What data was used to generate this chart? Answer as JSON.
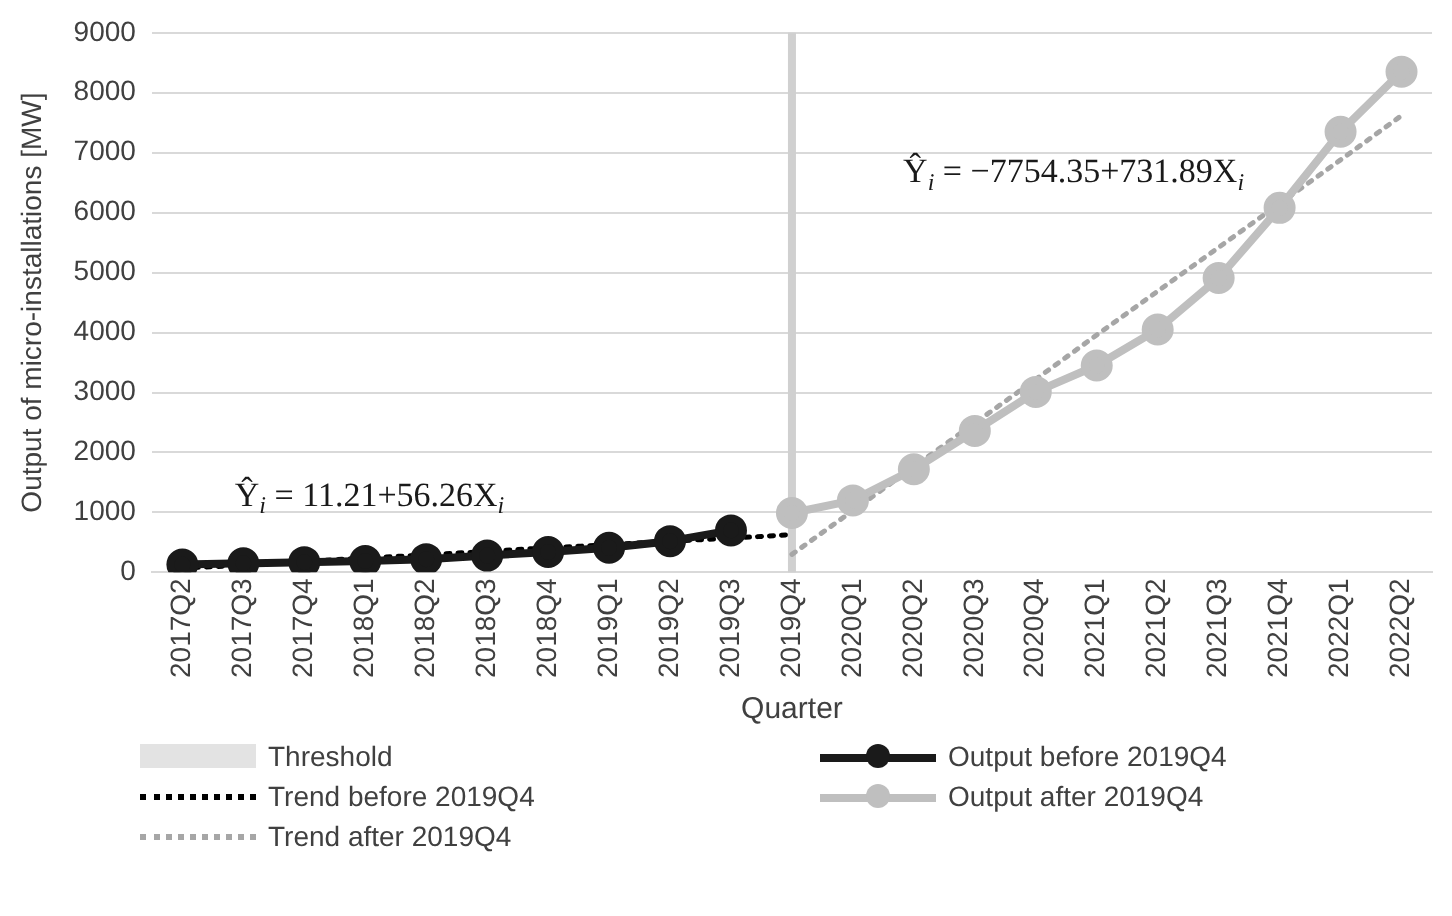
{
  "chart_data": {
    "type": "line",
    "xlabel": "Quarter",
    "ylabel": "Output of micro-installations [MW]",
    "categories": [
      "2017Q2",
      "2017Q3",
      "2017Q4",
      "2018Q1",
      "2018Q2",
      "2018Q3",
      "2018Q4",
      "2019Q1",
      "2019Q2",
      "2019Q3",
      "2019Q4",
      "2020Q1",
      "2020Q2",
      "2020Q3",
      "2020Q4",
      "2021Q1",
      "2021Q2",
      "2021Q3",
      "2021Q4",
      "2022Q1",
      "2022Q2"
    ],
    "series": [
      {
        "name": "Trend before 2019Q4",
        "color": "#000000",
        "line_style": "dotted",
        "marker": "none",
        "values": [
          70,
          120,
          180,
          240,
          290,
          350,
          410,
          460,
          520,
          570,
          630,
          null,
          null,
          null,
          null,
          null,
          null,
          null,
          null,
          null,
          null
        ]
      },
      {
        "name": "Trend  after 2019Q4",
        "color": "#a6a6a6",
        "line_style": "dotted",
        "marker": "none",
        "values": [
          null,
          null,
          null,
          null,
          null,
          null,
          null,
          null,
          null,
          null,
          300,
          1030,
          1760,
          2490,
          3220,
          3960,
          4690,
          5420,
          6150,
          6880,
          7620
        ]
      },
      {
        "name": "Output before 2019Q4",
        "color": "#1a1a1a",
        "line_style": "solid",
        "marker": "circle",
        "values": [
          130,
          150,
          170,
          190,
          220,
          280,
          340,
          410,
          520,
          700,
          null,
          null,
          null,
          null,
          null,
          null,
          null,
          null,
          null,
          null,
          null
        ]
      },
      {
        "name": "Output after 2019Q4",
        "color": "#bfbfbf",
        "line_style": "solid",
        "marker": "circle",
        "values": [
          null,
          null,
          null,
          null,
          null,
          null,
          null,
          null,
          null,
          null,
          990,
          1200,
          1720,
          2360,
          3010,
          3450,
          4050,
          4910,
          6080,
          7350,
          8350
        ]
      }
    ],
    "ylim": [
      0,
      9000
    ],
    "yticks": [
      0,
      1000,
      2000,
      3000,
      4000,
      5000,
      6000,
      7000,
      8000,
      9000
    ],
    "ref_lines": [
      {
        "axis": "x",
        "value": "2019Q4",
        "label": "Threshold",
        "color": "#d0d0d0"
      }
    ],
    "annotations": [
      "Ŷ$_{i}$ = 11.21+56.26X$_{i}$",
      "Ŷ$_{i}$ = −7754.35+731.89X$_{i}$"
    ],
    "grid": "y",
    "legend": "bottom"
  }
}
